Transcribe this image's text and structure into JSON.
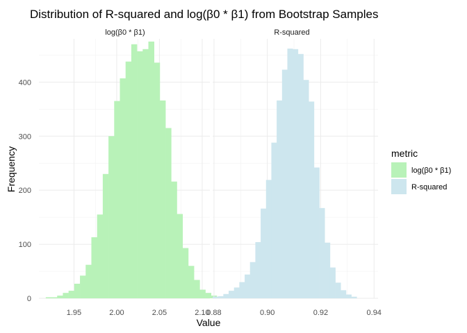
{
  "chart_data": {
    "type": "bar",
    "title": "Distribution of R-squared and log(β0 * β1) from Bootstrap Samples",
    "xlabel": "Value",
    "ylabel": "Frequency",
    "ylim": [
      0,
      480
    ],
    "y_ticks": [
      0,
      100,
      200,
      300,
      400
    ],
    "grid": true,
    "legend": {
      "title": "metric",
      "position": "right",
      "entries": [
        {
          "label": "log(β0 * β1)",
          "color": "#b8f2b8"
        },
        {
          "label": "R-squared",
          "color": "#cde6ee"
        }
      ]
    },
    "facets": [
      {
        "label": "log(β0 * β1)",
        "color": "#b8f2b8",
        "xlim": [
          1.909,
          2.109
        ],
        "x_ticks": [
          1.95,
          2.0,
          2.05,
          2.1
        ],
        "x_tick_labels": [
          "1.95",
          "2.00",
          "2.05",
          "2.10"
        ],
        "bin_start": 1.917,
        "bin_width": 0.00667,
        "values": [
          2,
          2,
          5,
          10,
          14,
          27,
          42,
          62,
          113,
          155,
          230,
          300,
          365,
          407,
          438,
          470,
          457,
          461,
          475,
          436,
          366,
          315,
          216,
          156,
          93,
          60,
          34,
          16,
          10,
          5,
          1
        ]
      },
      {
        "label": "R-squared",
        "color": "#cde6ee",
        "xlim": [
          0.8795,
          0.9415
        ],
        "x_ticks": [
          0.88,
          0.9,
          0.92,
          0.94
        ],
        "x_tick_labels": [
          "0.88",
          "0.90",
          "0.92",
          "0.94"
        ],
        "bin_start": 0.8795,
        "bin_width": 0.002,
        "values": [
          3,
          4,
          8,
          14,
          20,
          30,
          44,
          67,
          104,
          166,
          219,
          288,
          366,
          423,
          462,
          461,
          452,
          404,
          364,
          242,
          167,
          103,
          57,
          29,
          15,
          7,
          3
        ]
      }
    ]
  }
}
